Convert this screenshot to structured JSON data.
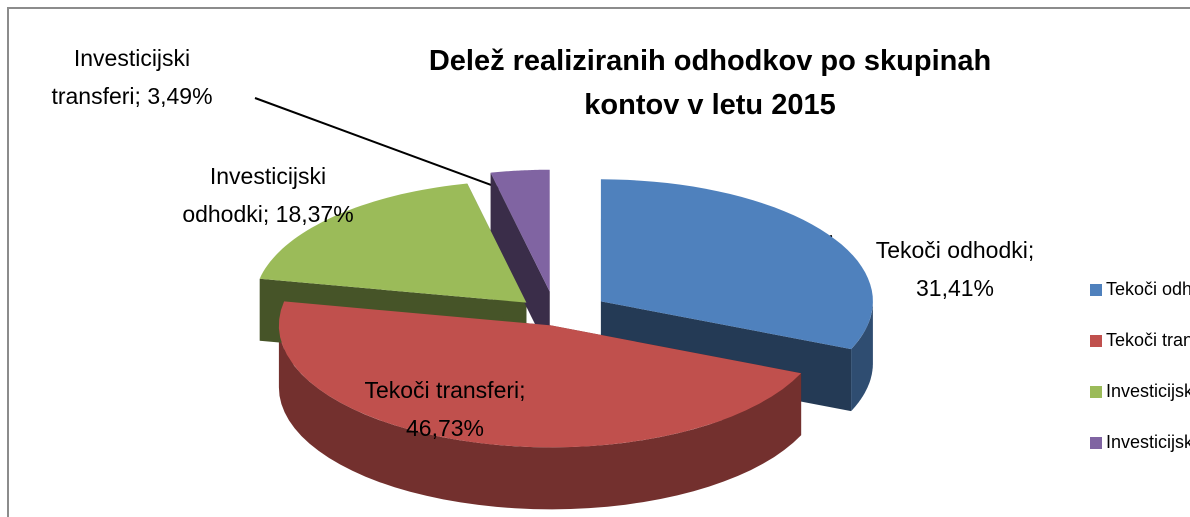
{
  "chart_data": {
    "type": "pie3d",
    "title": "Delež realiziranih odhodkov po skupinah kontov v letu 2015",
    "categories": [
      "Tekoči odhodki",
      "Tekoči transferi",
      "Investicijski odhodki",
      "Investicijski transferi"
    ],
    "values": [
      31.41,
      46.73,
      18.37,
      3.49
    ],
    "value_labels": [
      "Tekoči odhodki; 31,41%",
      "Tekoči transferi; 46,73%",
      "Investicijski odhodki; 18,37%",
      "Investicijski transferi; 3,49%"
    ],
    "colors": [
      "#4f81bd",
      "#c0504d",
      "#9bbb59",
      "#8064a2"
    ],
    "legend": "right"
  }
}
